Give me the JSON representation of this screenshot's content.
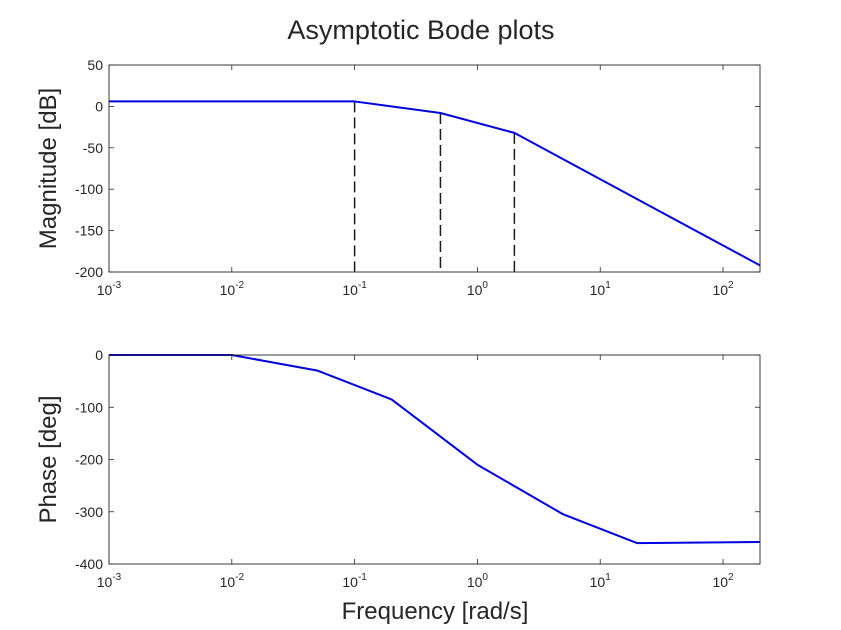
{
  "figure": {
    "title": "Asymptotic Bode plots",
    "xlabel": "Frequency [rad/s]"
  },
  "chart_data": [
    {
      "type": "line",
      "name": "magnitude",
      "ylabel": "Magnitude [dB]",
      "xscale": "log",
      "xlim": [
        0.001,
        200
      ],
      "ylim": [
        -200,
        50
      ],
      "xticks": [
        {
          "value": 0.001,
          "base": "10",
          "exp": "-3"
        },
        {
          "value": 0.01,
          "base": "10",
          "exp": "-2"
        },
        {
          "value": 0.1,
          "base": "10",
          "exp": "-1"
        },
        {
          "value": 1,
          "base": "10",
          "exp": "0"
        },
        {
          "value": 10,
          "base": "10",
          "exp": "1"
        },
        {
          "value": 100,
          "base": "10",
          "exp": "2"
        }
      ],
      "yticks": [
        {
          "value": 50,
          "label": "50"
        },
        {
          "value": 0,
          "label": "0"
        },
        {
          "value": -50,
          "label": "-50"
        },
        {
          "value": -100,
          "label": "-100"
        },
        {
          "value": -150,
          "label": "-150"
        },
        {
          "value": -200,
          "label": "-200"
        }
      ],
      "grid": true,
      "line_color": "#0000e0",
      "x": [
        0.001,
        0.1,
        0.5,
        2,
        200
      ],
      "y": [
        6,
        6,
        -8,
        -32,
        -192
      ],
      "markers": [
        {
          "x": 0.1,
          "y": 6
        },
        {
          "x": 0.5,
          "y": -8
        },
        {
          "x": 2,
          "y": -32
        }
      ]
    },
    {
      "type": "line",
      "name": "phase",
      "ylabel": "Phase [deg]",
      "xscale": "log",
      "xlim": [
        0.001,
        200
      ],
      "ylim": [
        -400,
        0
      ],
      "xticks": [
        {
          "value": 0.001,
          "base": "10",
          "exp": "-3"
        },
        {
          "value": 0.01,
          "base": "10",
          "exp": "-2"
        },
        {
          "value": 0.1,
          "base": "10",
          "exp": "-1"
        },
        {
          "value": 1,
          "base": "10",
          "exp": "0"
        },
        {
          "value": 10,
          "base": "10",
          "exp": "1"
        },
        {
          "value": 100,
          "base": "10",
          "exp": "2"
        }
      ],
      "yticks": [
        {
          "value": 0,
          "label": "0"
        },
        {
          "value": -100,
          "label": "-100"
        },
        {
          "value": -200,
          "label": "-200"
        },
        {
          "value": -300,
          "label": "-300"
        },
        {
          "value": -400,
          "label": "-400"
        }
      ],
      "grid": true,
      "line_color": "#0000e0",
      "x": [
        0.001,
        0.01,
        0.05,
        0.2,
        1,
        5,
        20,
        200
      ],
      "y": [
        0,
        0,
        -30,
        -85,
        -210,
        -305,
        -360,
        -358
      ]
    }
  ]
}
